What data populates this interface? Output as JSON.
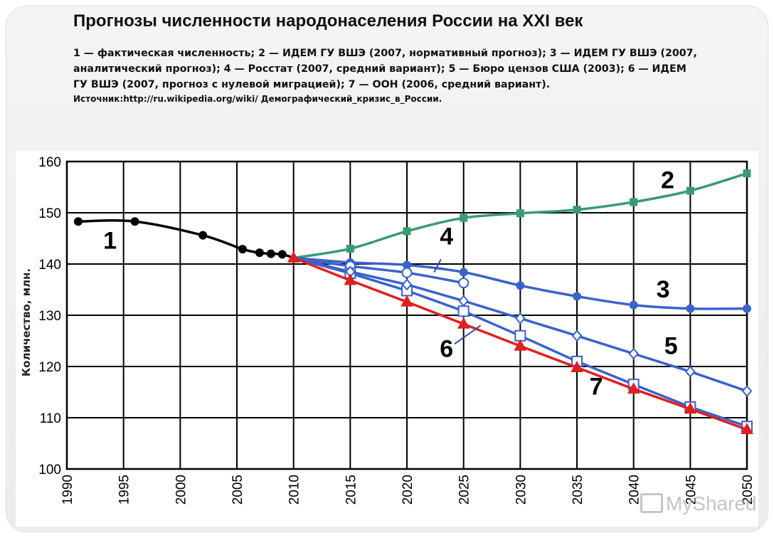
{
  "slide": {
    "title": "Прогнозы численности народонаселения России на XXI век",
    "legend_text": "1 — фактическая численность; 2 — ИДЕМ ГУ ВШЭ (2007, нормативный прогноз); 3 — ИДЕМ ГУ ВШЭ (2007, аналитический прогноз); 4 — Росстат (2007, средний вариант); 5 — Бюро цензов США (2003); 6 — ИДЕМ ГУ ВШЭ (2007, прогноз с нулевой миграцией); 7 — ООН (2006, средний вариант).",
    "source_text": "Источник:http://ru.wikipedia.org/wiki/ Демографический_кризис_в_России.",
    "watermark": "MyShared"
  },
  "chart_data": {
    "type": "line",
    "title": "",
    "xlabel": "",
    "ylabel": "Количество, млн.",
    "xlim": [
      1990,
      2050
    ],
    "ylim": [
      100,
      160
    ],
    "x_ticks": [
      1990,
      1995,
      2000,
      2005,
      2010,
      2015,
      2020,
      2025,
      2030,
      2035,
      2040,
      2045,
      2050
    ],
    "y_ticks": [
      100,
      110,
      120,
      130,
      140,
      150,
      160
    ],
    "grid": true,
    "series": [
      {
        "name": "1",
        "color": "#000000",
        "marker": "filled-circle",
        "smooth": true,
        "points": [
          [
            1991,
            148.3
          ],
          [
            1996,
            148.3
          ],
          [
            2002,
            145.6
          ],
          [
            2005.5,
            142.9
          ],
          [
            2007,
            142.2
          ],
          [
            2008,
            142.0
          ],
          [
            2009,
            141.9
          ],
          [
            2010,
            141.2
          ]
        ],
        "marker_x": [
          1991,
          1996,
          2002,
          2005.5,
          2007,
          2008,
          2009
        ]
      },
      {
        "name": "2",
        "color": "#3a9a72",
        "marker": "filled-square",
        "smooth": true,
        "points": [
          [
            2010,
            141.2
          ],
          [
            2015,
            143.0
          ],
          [
            2020,
            146.4
          ],
          [
            2025,
            149.0
          ],
          [
            2030,
            149.9
          ],
          [
            2035,
            150.6
          ],
          [
            2040,
            152.1
          ],
          [
            2045,
            154.3
          ],
          [
            2050,
            157.7
          ]
        ],
        "marker_x": [
          2015,
          2020,
          2025,
          2030,
          2035,
          2040,
          2045,
          2050
        ]
      },
      {
        "name": "3",
        "color": "#3a62cc",
        "marker": "filled-circle",
        "smooth": true,
        "points": [
          [
            2010,
            141.2
          ],
          [
            2015,
            140.3
          ],
          [
            2020,
            139.8
          ],
          [
            2025,
            138.4
          ],
          [
            2030,
            135.8
          ],
          [
            2035,
            133.7
          ],
          [
            2040,
            132.0
          ],
          [
            2045,
            131.3
          ],
          [
            2050,
            131.3
          ]
        ],
        "marker_x": [
          2015,
          2020,
          2025,
          2030,
          2035,
          2040,
          2045,
          2050
        ]
      },
      {
        "name": "4",
        "color": "#3a62cc",
        "marker": "open-circle",
        "smooth": true,
        "points": [
          [
            2010,
            141.2
          ],
          [
            2015,
            139.6
          ],
          [
            2020,
            138.3
          ],
          [
            2025,
            136.3
          ]
        ],
        "marker_x": [
          2015,
          2020,
          2025
        ]
      },
      {
        "name": "5",
        "color": "#3a62cc",
        "marker": "open-diamond",
        "smooth": false,
        "points": [
          [
            2010,
            141.2
          ],
          [
            2015,
            138.5
          ],
          [
            2020,
            136.0
          ],
          [
            2025,
            132.8
          ],
          [
            2030,
            129.4
          ],
          [
            2035,
            126.0
          ],
          [
            2040,
            122.5
          ],
          [
            2045,
            119.0
          ],
          [
            2050,
            115.2
          ]
        ],
        "marker_x": [
          2015,
          2020,
          2025,
          2030,
          2035,
          2040,
          2045,
          2050
        ]
      },
      {
        "name": "6",
        "color": "#3a62cc",
        "marker": "open-square",
        "smooth": false,
        "points": [
          [
            2010,
            141.2
          ],
          [
            2015,
            138.2
          ],
          [
            2020,
            134.8
          ],
          [
            2025,
            130.8
          ],
          [
            2030,
            126.0
          ],
          [
            2035,
            121.0
          ],
          [
            2040,
            116.5
          ],
          [
            2045,
            112.1
          ],
          [
            2050,
            108.3
          ]
        ],
        "marker_x": [
          2015,
          2020,
          2025,
          2030,
          2035,
          2040,
          2045,
          2050
        ]
      },
      {
        "name": "7",
        "color": "#e02020",
        "marker": "filled-triangle",
        "smooth": false,
        "points": [
          [
            2010,
            141.2
          ],
          [
            2015,
            136.8
          ],
          [
            2020,
            132.6
          ],
          [
            2025,
            128.3
          ],
          [
            2030,
            124.0
          ],
          [
            2035,
            119.8
          ],
          [
            2040,
            115.6
          ],
          [
            2045,
            111.7
          ],
          [
            2050,
            107.7
          ]
        ],
        "marker_x": [
          2010,
          2015,
          2020,
          2025,
          2030,
          2035,
          2040,
          2045,
          2050
        ]
      }
    ],
    "annotations": [
      {
        "text": "1",
        "x": 1993.8,
        "y": 143.0
      },
      {
        "text": "2",
        "x": 2043.0,
        "y": 154.8
      },
      {
        "text": "3",
        "x": 2042.6,
        "y": 133.5
      },
      {
        "text": "4",
        "x": 2023.5,
        "y": 143.8
      },
      {
        "text": "5",
        "x": 2043.3,
        "y": 122.4
      },
      {
        "text": "6",
        "x": 2023.5,
        "y": 121.9
      },
      {
        "text": "7",
        "x": 2036.7,
        "y": 114.5
      }
    ],
    "leader_lines": [
      {
        "from": [
          2023.0,
          140.9
        ],
        "to": [
          2022.4,
          138.4
        ]
      },
      {
        "from": [
          2024.2,
          124.4
        ],
        "to": [
          2026.5,
          128.0
        ]
      }
    ]
  }
}
